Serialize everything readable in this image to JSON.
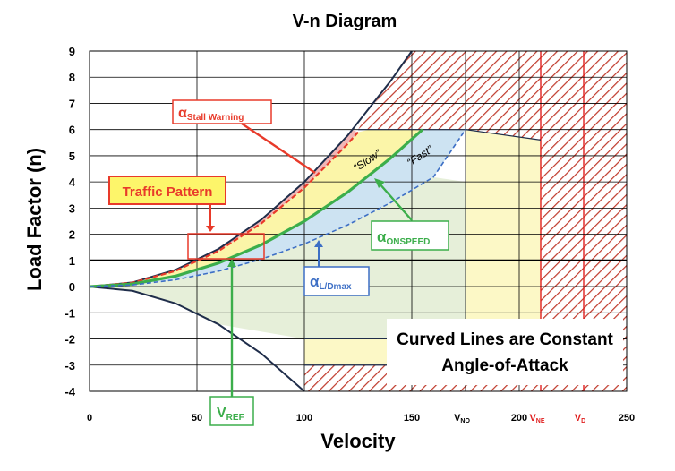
{
  "chart_data": {
    "type": "line",
    "title": "V-n Diagram",
    "xlabel": "Velocity",
    "ylabel": "Load Factor (n)",
    "xlim": [
      0,
      250
    ],
    "ylim": [
      -4,
      9
    ],
    "x_ticks": [
      {
        "label": "0",
        "value": 0
      },
      {
        "label": "50",
        "value": 50
      },
      {
        "label": "100",
        "value": 100
      },
      {
        "label": "150",
        "value": 150
      },
      {
        "label": "200",
        "value": 200
      },
      {
        "label": "250",
        "value": 250
      }
    ],
    "x_special_ticks": [
      {
        "label": "V",
        "sub": "NO",
        "value": 175,
        "color": "#000000"
      },
      {
        "label": "V",
        "sub": "NE",
        "value": 210,
        "color": "#e02020"
      },
      {
        "label": "V",
        "sub": "D",
        "value": 230,
        "color": "#e02020"
      }
    ],
    "y_ticks": [
      -4,
      -3,
      -2,
      -1,
      0,
      1,
      2,
      3,
      4,
      5,
      6,
      7,
      8,
      9
    ],
    "grid": true,
    "series": [
      {
        "name": "",
        "role": "positive-stall",
        "color": "#1f2d4a",
        "x": [
          0,
          20,
          40,
          60,
          80,
          100,
          120,
          140,
          150
        ],
        "y": [
          0,
          0.16,
          0.64,
          1.44,
          2.56,
          4.0,
          5.76,
          7.84,
          9.0
        ]
      },
      {
        "name": "",
        "role": "negative-stall",
        "color": "#1f2d4a",
        "x": [
          0,
          20,
          40,
          60,
          80,
          100
        ],
        "y": [
          0,
          -0.16,
          -0.64,
          -1.44,
          -2.56,
          -4.0
        ]
      },
      {
        "name": "",
        "role": "stall-warning",
        "color": "#e83a2a",
        "x": [
          0,
          20,
          40,
          60,
          80,
          100,
          120,
          125
        ],
        "y": [
          0,
          0.15,
          0.6,
          1.36,
          2.42,
          3.78,
          5.44,
          5.9
        ]
      },
      {
        "name": "",
        "role": "onspeed",
        "color": "#3cae4b",
        "x": [
          0,
          20,
          40,
          60,
          80,
          100,
          120,
          140,
          155
        ],
        "y": [
          0,
          0.1,
          0.4,
          0.9,
          1.6,
          2.5,
          3.6,
          4.9,
          6.0
        ]
      },
      {
        "name": "",
        "role": "l-dmax",
        "color": "#3d6fc5",
        "x": [
          0,
          20,
          40,
          60,
          80,
          100,
          120,
          140,
          160,
          175
        ],
        "y": [
          0,
          0.065,
          0.26,
          0.59,
          1.05,
          1.63,
          2.35,
          3.2,
          4.18,
          6.0
        ]
      }
    ],
    "regions": [
      {
        "name": "positive-limit",
        "n": 6,
        "x_range": [
          125,
          175
        ]
      },
      {
        "name": "negative-limit",
        "n": -3,
        "x_range": [
          100,
          210
        ]
      },
      {
        "name": "never-exceed",
        "x": 210
      }
    ],
    "annotations": [
      {
        "id": "stall_warning",
        "text": "α",
        "sub": "Stall Warning",
        "color": "#e83a2a"
      },
      {
        "id": "traffic_pattern",
        "text": "Traffic Pattern",
        "color": "#e83a2a"
      },
      {
        "id": "slow",
        "text": "“Slow”"
      },
      {
        "id": "fast",
        "text": "“Fast”"
      },
      {
        "id": "onspeed",
        "text": "α",
        "sub": "ONSPEED",
        "color": "#3cae4b"
      },
      {
        "id": "l_dmax",
        "text": "α",
        "sub": "L/Dmax",
        "color": "#3d6fc5"
      },
      {
        "id": "vref",
        "text": "V",
        "sub": "REF",
        "color": "#3cae4b"
      },
      {
        "id": "curved_1",
        "text": "Curved Lines are Constant"
      },
      {
        "id": "curved_2",
        "text": "Angle-of-Attack"
      }
    ]
  }
}
